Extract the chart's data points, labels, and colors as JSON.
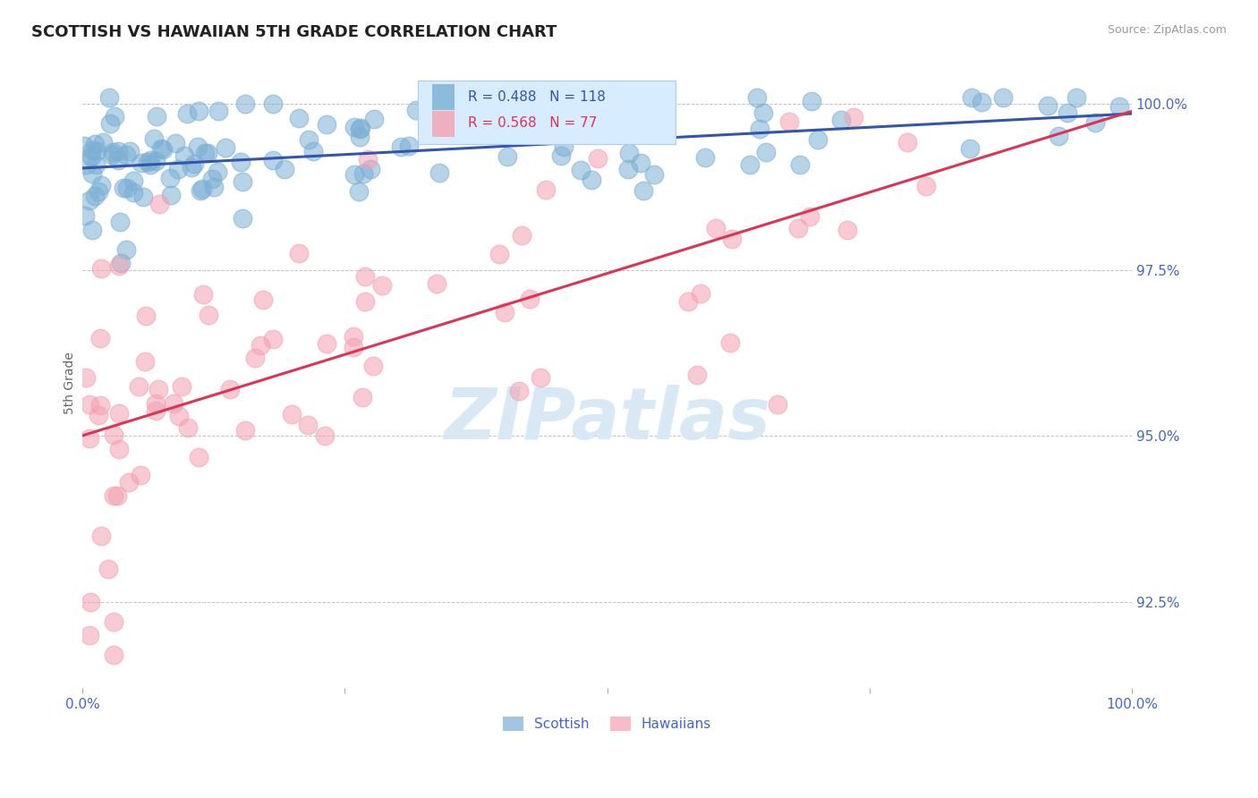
{
  "title": "SCOTTISH VS HAWAIIAN 5TH GRADE CORRELATION CHART",
  "source_text": "Source: ZipAtlas.com",
  "ylabel": "5th Grade",
  "xlim": [
    0.0,
    1.0
  ],
  "ylim": [
    0.912,
    1.004
  ],
  "yticks": [
    0.925,
    0.95,
    0.975,
    1.0
  ],
  "ytick_labels": [
    "92.5%",
    "95.0%",
    "97.5%",
    "100.0%"
  ],
  "scottish_R": 0.488,
  "scottish_N": 118,
  "hawaiian_R": 0.568,
  "hawaiian_N": 77,
  "scottish_color": "#7BAFD4",
  "hawaiian_color": "#F4A0B0",
  "trend_scottish_color": "#3355AA",
  "trend_hawaiian_color": "#DD3355",
  "background_color": "#FFFFFF",
  "grid_color": "#BBBBBB",
  "title_fontsize": 13,
  "axis_label_color": "#4466CC",
  "watermark_color": "#D8E8F5",
  "legend_box_facecolor": "#D8ECFF",
  "legend_box_edgecolor": "#AACCEE"
}
